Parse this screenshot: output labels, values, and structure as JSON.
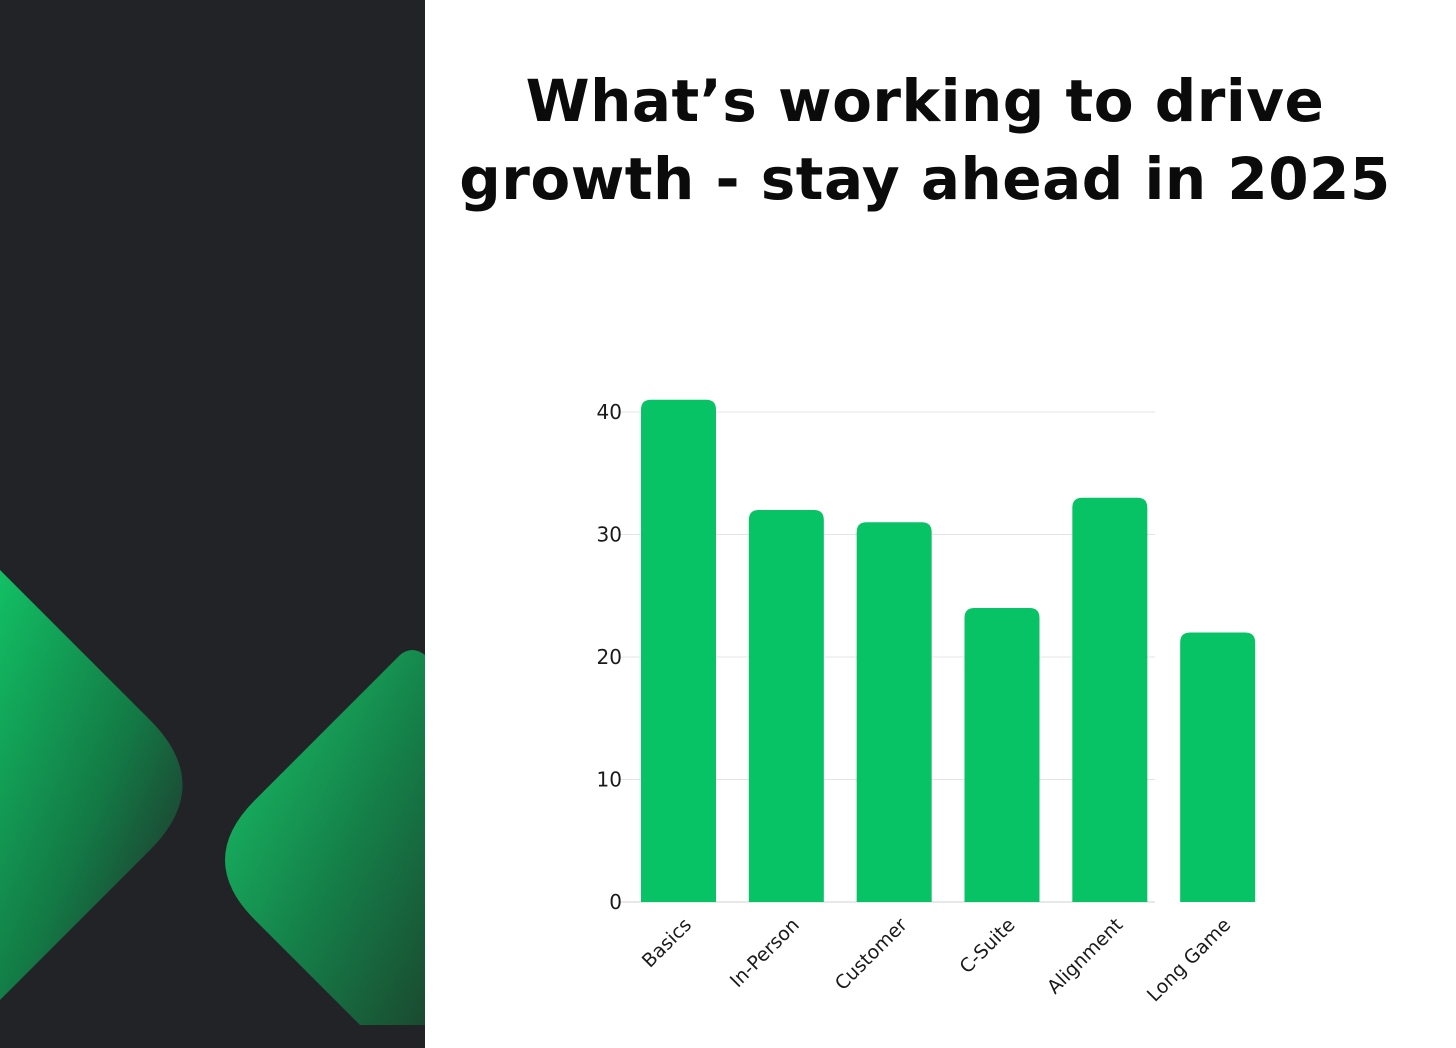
{
  "title": {
    "line1": "What’s working to drive",
    "line2": "growth - stay ahead in 2025"
  },
  "colors": {
    "left_panel": "#222327",
    "bar": "#08c266",
    "accent_green": "#0fbf62"
  },
  "chart_data": {
    "type": "bar",
    "categories": [
      "Basics",
      "In-Person",
      "Customer",
      "C-Suite",
      "Alignment",
      "Long Game"
    ],
    "values": [
      41,
      32,
      31,
      24,
      33,
      22
    ],
    "ylim": [
      0,
      40
    ],
    "yticks": [
      "0",
      "10",
      "20",
      "30",
      "40"
    ],
    "grid": true,
    "xlabel": "",
    "ylabel": ""
  }
}
